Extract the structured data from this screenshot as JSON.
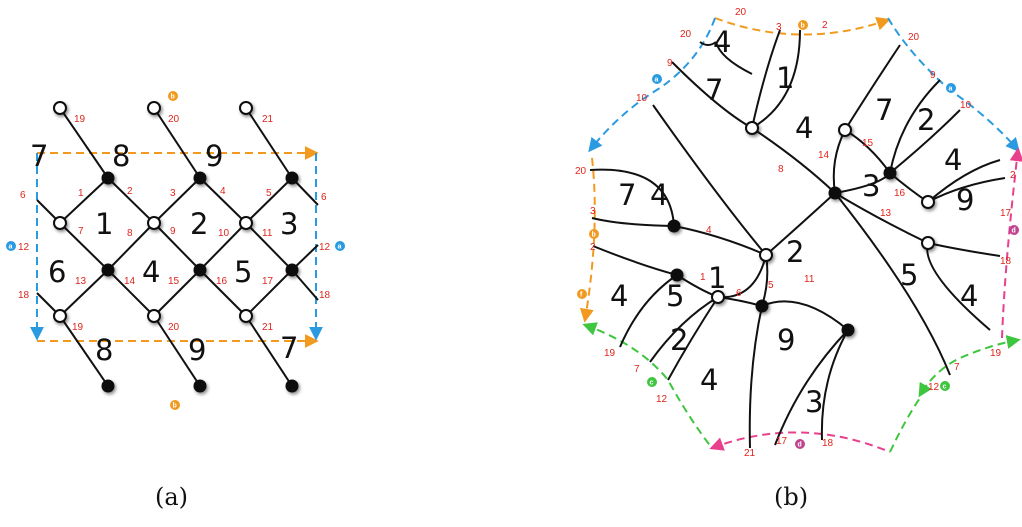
{
  "captions": {
    "a": "(a)",
    "b": "(b)"
  },
  "colors": {
    "orange": "#f29a1f",
    "blue": "#2a9be0",
    "pink": "#e8408c",
    "green": "#3fc63f",
    "magenta_tag": "#c0438f",
    "label_red": "#e0241b"
  },
  "panel_a": {
    "regions": [
      "7",
      "8",
      "9",
      "1",
      "2",
      "3",
      "6",
      "4",
      "5",
      "8",
      "9",
      "7"
    ],
    "edge_labels": [
      "19",
      "20",
      "21",
      "1",
      "2",
      "3",
      "4",
      "5",
      "6",
      "6",
      "7",
      "8",
      "9",
      "10",
      "11",
      "12",
      "12",
      "13",
      "14",
      "15",
      "16",
      "17",
      "18",
      "18",
      "19",
      "20",
      "21"
    ],
    "tags": [
      "b",
      "a",
      "a",
      "b"
    ]
  },
  "panel_b": {
    "regions": [
      "4",
      "7",
      "1",
      "7",
      "4",
      "2",
      "4",
      "3",
      "9",
      "7",
      "4",
      "2",
      "1",
      "5",
      "5",
      "4",
      "2",
      "9",
      "4",
      "3",
      "4"
    ],
    "edge_labels": [
      "20",
      "3",
      "2",
      "20",
      "9",
      "10",
      "20",
      "9",
      "10",
      "15",
      "14",
      "8",
      "16",
      "13",
      "2",
      "20",
      "3",
      "4",
      "2",
      "17",
      "18",
      "1",
      "6",
      "5",
      "11",
      "19",
      "7",
      "12",
      "21",
      "17",
      "18",
      "12",
      "7",
      "19"
    ],
    "tags": [
      "b",
      "a",
      "a",
      "b",
      "f",
      "d",
      "d",
      "c",
      "c"
    ]
  }
}
